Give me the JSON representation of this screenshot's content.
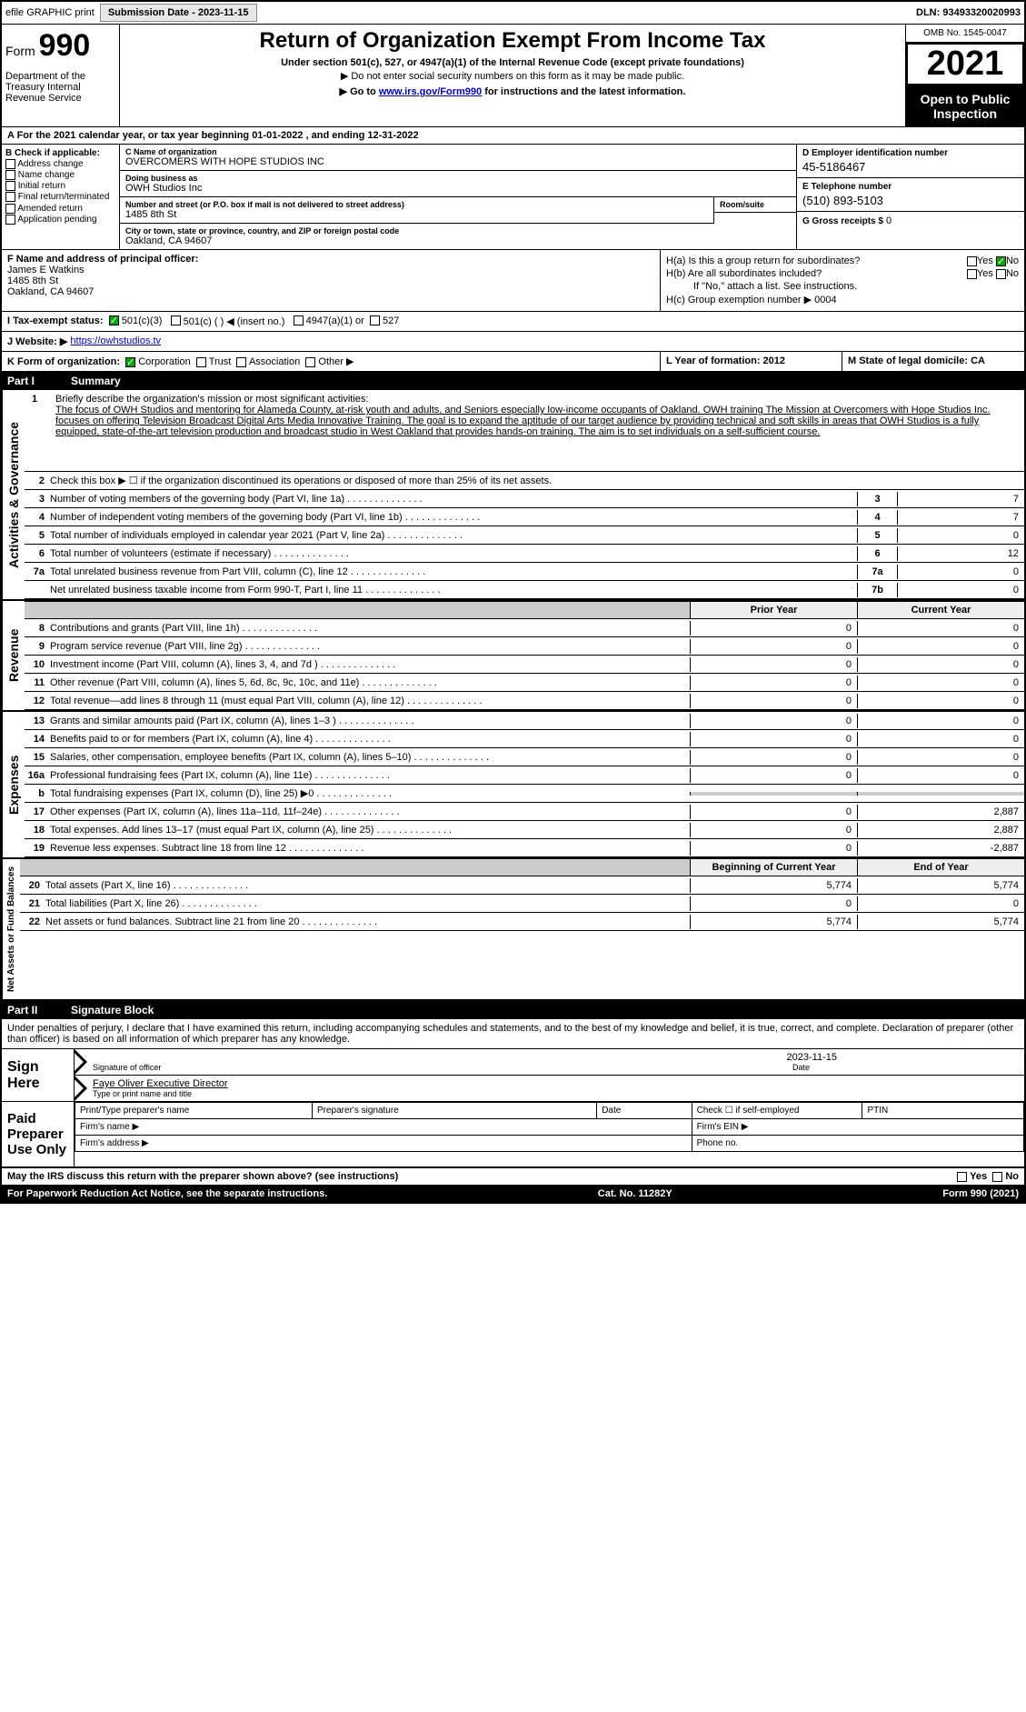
{
  "top": {
    "efile": "efile GRAPHIC print",
    "submitBtn": "Submission Date - 2023-11-15",
    "dln": "DLN: 93493320020993"
  },
  "header": {
    "form": "Form",
    "num": "990",
    "dept": "Department of the Treasury Internal Revenue Service",
    "title": "Return of Organization Exempt From Income Tax",
    "sub1": "Under section 501(c), 527, or 4947(a)(1) of the Internal Revenue Code (except private foundations)",
    "sub2": "▶ Do not enter social security numbers on this form as it may be made public.",
    "sub3_pre": "▶ Go to ",
    "sub3_link": "www.irs.gov/Form990",
    "sub3_post": " for instructions and the latest information.",
    "omb": "OMB No. 1545-0047",
    "year": "2021",
    "open": "Open to Public Inspection"
  },
  "rowA": "A For the 2021 calendar year, or tax year beginning 01-01-2022   , and ending 12-31-2022",
  "colB": {
    "label": "B Check if applicable:",
    "items": [
      "Address change",
      "Name change",
      "Initial return",
      "Final return/terminated",
      "Amended return",
      "Application pending"
    ]
  },
  "colC": {
    "nameLbl": "C Name of organization",
    "name": "OVERCOMERS WITH HOPE STUDIOS INC",
    "dbaLbl": "Doing business as",
    "dba": "OWH Studios Inc",
    "addrLbl": "Number and street (or P.O. box if mail is not delivered to street address)",
    "roomLbl": "Room/suite",
    "addr": "1485 8th St",
    "cityLbl": "City or town, state or province, country, and ZIP or foreign postal code",
    "city": "Oakland, CA  94607"
  },
  "colD": {
    "einLbl": "D Employer identification number",
    "ein": "45-5186467",
    "telLbl": "E Telephone number",
    "tel": "(510) 893-5103",
    "grossLbl": "G Gross receipts $",
    "gross": "0"
  },
  "rowF": {
    "lbl": "F  Name and address of principal officer:",
    "name": "James E Watkins",
    "addr1": "1485 8th St",
    "addr2": "Oakland, CA  94607"
  },
  "rowH": {
    "a": "H(a)  Is this a group return for subordinates?",
    "b": "H(b)  Are all subordinates included?",
    "bNote": "If \"No,\" attach a list. See instructions.",
    "c": "H(c)  Group exemption number ▶",
    "cVal": "0004",
    "yes": "Yes",
    "no": "No"
  },
  "rowI": {
    "lbl": "I   Tax-exempt status:",
    "o1": "501(c)(3)",
    "o2": "501(c) (  ) ◀ (insert no.)",
    "o3": "4947(a)(1) or",
    "o4": "527"
  },
  "rowJ": {
    "lbl": "J   Website: ▶",
    "val": "https://owhstudios.tv"
  },
  "rowK": {
    "lbl": "K Form of organization:",
    "corp": "Corporation",
    "trust": "Trust",
    "assoc": "Association",
    "other": "Other ▶",
    "l": "L Year of formation: 2012",
    "m": "M State of legal domicile: CA"
  },
  "partI": {
    "num": "Part I",
    "title": "Summary"
  },
  "mission": {
    "lbl": "1",
    "intro": "Briefly describe the organization's mission or most significant activities:",
    "text": "The focus of OWH Studios and mentoring for Alameda County, at-risk youth and adults, and Seniors especially low-income occupants of Oakland. OWH training The Mission at Overcomers with Hope Studios Inc. focuses on offering Television Broadcast Digital Arts Media Innovative Training. The goal is to expand the aptitude of our target audience by providing technical and soft skills in areas that OWH Studios is a fully equipped, state-of-the-art television production and broadcast studio in West Oakland that provides hands-on training. The aim is to set individuals on a self-sufficient course."
  },
  "gov": {
    "label": "Activities & Governance",
    "l2": "Check this box ▶ ☐  if the organization discontinued its operations or disposed of more than 25% of its net assets.",
    "lines": [
      {
        "n": "3",
        "t": "Number of voting members of the governing body (Part VI, line 1a)",
        "box": "3",
        "v": "7"
      },
      {
        "n": "4",
        "t": "Number of independent voting members of the governing body (Part VI, line 1b)",
        "box": "4",
        "v": "7"
      },
      {
        "n": "5",
        "t": "Total number of individuals employed in calendar year 2021 (Part V, line 2a)",
        "box": "5",
        "v": "0"
      },
      {
        "n": "6",
        "t": "Total number of volunteers (estimate if necessary)",
        "box": "6",
        "v": "12"
      },
      {
        "n": "7a",
        "t": "Total unrelated business revenue from Part VIII, column (C), line 12",
        "box": "7a",
        "v": "0"
      },
      {
        "n": "",
        "t": "Net unrelated business taxable income from Form 990-T, Part I, line 11",
        "box": "7b",
        "v": "0"
      }
    ]
  },
  "rev": {
    "label": "Revenue",
    "hdrPrior": "Prior Year",
    "hdrCurr": "Current Year",
    "lines": [
      {
        "n": "8",
        "t": "Contributions and grants (Part VIII, line 1h)",
        "p": "0",
        "c": "0"
      },
      {
        "n": "9",
        "t": "Program service revenue (Part VIII, line 2g)",
        "p": "0",
        "c": "0"
      },
      {
        "n": "10",
        "t": "Investment income (Part VIII, column (A), lines 3, 4, and 7d )",
        "p": "0",
        "c": "0"
      },
      {
        "n": "11",
        "t": "Other revenue (Part VIII, column (A), lines 5, 6d, 8c, 9c, 10c, and 11e)",
        "p": "0",
        "c": "0"
      },
      {
        "n": "12",
        "t": "Total revenue—add lines 8 through 11 (must equal Part VIII, column (A), line 12)",
        "p": "0",
        "c": "0"
      }
    ]
  },
  "exp": {
    "label": "Expenses",
    "lines": [
      {
        "n": "13",
        "t": "Grants and similar amounts paid (Part IX, column (A), lines 1–3 )",
        "p": "0",
        "c": "0"
      },
      {
        "n": "14",
        "t": "Benefits paid to or for members (Part IX, column (A), line 4)",
        "p": "0",
        "c": "0"
      },
      {
        "n": "15",
        "t": "Salaries, other compensation, employee benefits (Part IX, column (A), lines 5–10)",
        "p": "0",
        "c": "0"
      },
      {
        "n": "16a",
        "t": "Professional fundraising fees (Part IX, column (A), line 11e)",
        "p": "0",
        "c": "0"
      },
      {
        "n": "b",
        "t": "Total fundraising expenses (Part IX, column (D), line 25) ▶0",
        "p": "grey",
        "c": "grey"
      },
      {
        "n": "17",
        "t": "Other expenses (Part IX, column (A), lines 11a–11d, 11f–24e)",
        "p": "0",
        "c": "2,887"
      },
      {
        "n": "18",
        "t": "Total expenses. Add lines 13–17 (must equal Part IX, column (A), line 25)",
        "p": "0",
        "c": "2,887"
      },
      {
        "n": "19",
        "t": "Revenue less expenses. Subtract line 18 from line 12",
        "p": "0",
        "c": "-2,887"
      }
    ]
  },
  "net": {
    "label": "Net Assets or Fund Balances",
    "hdrBeg": "Beginning of Current Year",
    "hdrEnd": "End of Year",
    "lines": [
      {
        "n": "20",
        "t": "Total assets (Part X, line 16)",
        "p": "5,774",
        "c": "5,774"
      },
      {
        "n": "21",
        "t": "Total liabilities (Part X, line 26)",
        "p": "0",
        "c": "0"
      },
      {
        "n": "22",
        "t": "Net assets or fund balances. Subtract line 21 from line 20",
        "p": "5,774",
        "c": "5,774"
      }
    ]
  },
  "partII": {
    "num": "Part II",
    "title": "Signature Block"
  },
  "sig": {
    "decl": "Under penalties of perjury, I declare that I have examined this return, including accompanying schedules and statements, and to the best of my knowledge and belief, it is true, correct, and complete. Declaration of preparer (other than officer) is based on all information of which preparer has any knowledge.",
    "signHere": "Sign Here",
    "sigOff": "Signature of officer",
    "date": "Date",
    "dateVal": "2023-11-15",
    "name": "Faye Oliver Executive Director",
    "nameLbl": "Type or print name and title",
    "paid": "Paid Preparer Use Only",
    "prepName": "Print/Type preparer's name",
    "prepSig": "Preparer's signature",
    "prepDate": "Date",
    "chkSelf": "Check ☐ if self-employed",
    "ptin": "PTIN",
    "firmName": "Firm's name  ▶",
    "firmEin": "Firm's EIN ▶",
    "firmAddr": "Firm's address ▶",
    "phone": "Phone no."
  },
  "footer": {
    "discuss": "May the IRS discuss this return with the preparer shown above? (see instructions)",
    "yes": "Yes",
    "no": "No",
    "pra": "For Paperwork Reduction Act Notice, see the separate instructions.",
    "cat": "Cat. No. 11282Y",
    "form": "Form 990 (2021)"
  }
}
